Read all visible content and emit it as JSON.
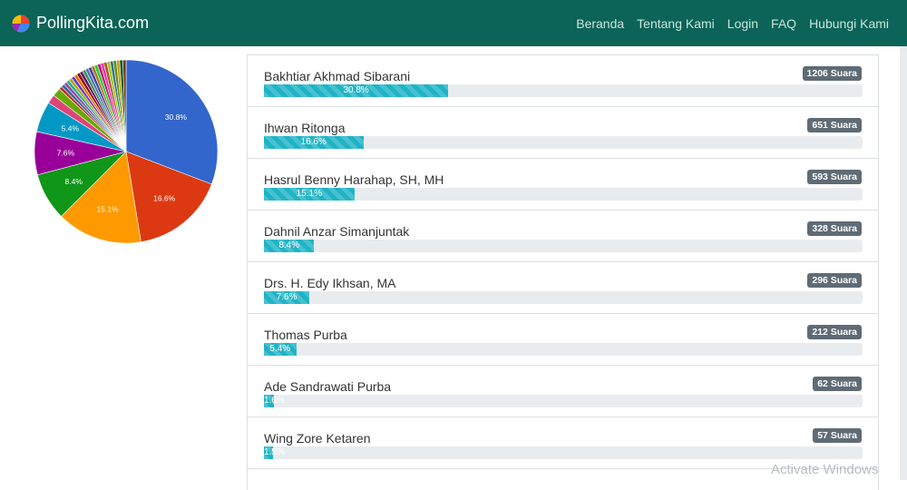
{
  "brand": {
    "name": "PollingKita.com"
  },
  "nav": {
    "items": [
      "Beranda",
      "Tentang Kami",
      "Login",
      "FAQ",
      "Hubungi Kami"
    ]
  },
  "candidates": [
    {
      "name": "Bakhtiar Akhmad Sibarani",
      "votes_label": "1206 Suara",
      "percent_label": "30.8%",
      "percent": 30.8
    },
    {
      "name": "Ihwan Ritonga",
      "votes_label": "651 Suara",
      "percent_label": "16.6%",
      "percent": 16.6
    },
    {
      "name": "Hasrul Benny Harahap, SH, MH",
      "votes_label": "593 Suara",
      "percent_label": "15.1%",
      "percent": 15.1
    },
    {
      "name": "Dahnil Anzar Simanjuntak",
      "votes_label": "328 Suara",
      "percent_label": "8.4%",
      "percent": 8.4
    },
    {
      "name": "Drs. H. Edy Ikhsan, MA",
      "votes_label": "296 Suara",
      "percent_label": "7.6%",
      "percent": 7.6
    },
    {
      "name": "Thomas Purba",
      "votes_label": "212 Suara",
      "percent_label": "5.4%",
      "percent": 5.4
    },
    {
      "name": "Ade Sandrawati Purba",
      "votes_label": "62 Suara",
      "percent_label": "1.6%",
      "percent": 1.6
    },
    {
      "name": "Wing Zore Ketaren",
      "votes_label": "57 Suara",
      "percent_label": "1.5%",
      "percent": 1.5
    }
  ],
  "chart_data": {
    "type": "pie",
    "labels": [
      "Bakhtiar Akhmad Sibarani",
      "Ihwan Ritonga",
      "Hasrul Benny Harahap, SH, MH",
      "Dahnil Anzar Simanjuntak",
      "Drs. H. Edy Ikhsan, MA",
      "Thomas Purba"
    ],
    "values": [
      30.8,
      16.6,
      15.1,
      8.4,
      7.6,
      5.4
    ],
    "value_labels": [
      "30.8%",
      "16.6%",
      "15.1%",
      "8.4%",
      "7.6%",
      "5.4%"
    ],
    "colors": [
      "#3366cc",
      "#dc3912",
      "#ff9900",
      "#109618",
      "#990099",
      "#0099c6"
    ],
    "minor_colors": [
      "#dd4477",
      "#66aa00",
      "#b82e2e",
      "#316395",
      "#994499",
      "#22aa99",
      "#aaaa11",
      "#6633cc",
      "#e67300",
      "#8b0707",
      "#651067",
      "#329262",
      "#5574a6",
      "#3b3eac",
      "#b77322",
      "#16d620",
      "#b91383",
      "#f4359e",
      "#9c5935",
      "#a9c413",
      "#2a778d",
      "#668d1c",
      "#bea413",
      "#0c5922",
      "#743411"
    ]
  },
  "watermark": "Activate Windows"
}
